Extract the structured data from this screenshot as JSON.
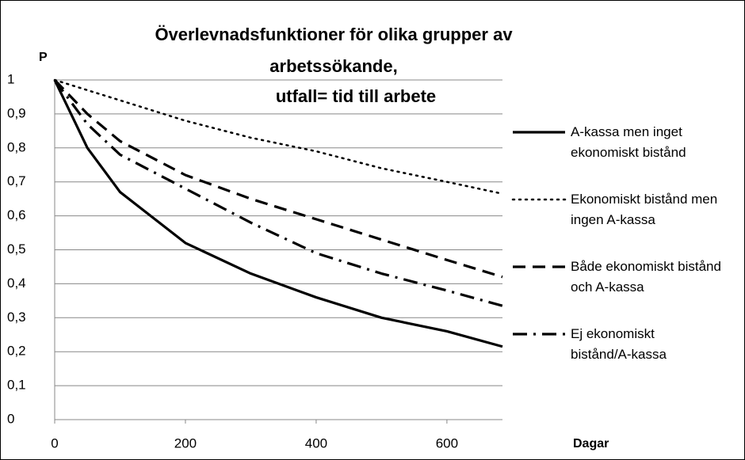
{
  "chart_data": {
    "type": "line",
    "title": [
      "Överlevnadsfunktioner för olika grupper av",
      "arbetssökande,",
      "utfall= tid till arbete"
    ],
    "y_label": "P",
    "x_label": "Dagar",
    "x": [
      0,
      50,
      100,
      200,
      300,
      400,
      500,
      600,
      685
    ],
    "series": [
      {
        "name": "A-kassa men inget ekonomiskt bistånd",
        "color": "#000000",
        "dash": "solid",
        "values": [
          1,
          0.8,
          0.67,
          0.52,
          0.43,
          0.36,
          0.3,
          0.26,
          0.215
        ]
      },
      {
        "name": "Ekonomiskt bistånd men ingen A-kassa",
        "color": "#000000",
        "dash": "dotted",
        "values": [
          1,
          0.97,
          0.94,
          0.88,
          0.83,
          0.79,
          0.74,
          0.7,
          0.665
        ]
      },
      {
        "name": "Både ekonomiskt bistånd och A-kassa",
        "color": "#000000",
        "dash": "dashed",
        "values": [
          1,
          0.9,
          0.82,
          0.72,
          0.65,
          0.59,
          0.53,
          0.47,
          0.42
        ]
      },
      {
        "name": "Ej ekonomiskt bistånd/A-kassa",
        "color": "#000000",
        "dash": "dashdot",
        "values": [
          1,
          0.87,
          0.78,
          0.68,
          0.58,
          0.49,
          0.43,
          0.38,
          0.335
        ]
      }
    ],
    "xlim": [
      0,
      685
    ],
    "xticks": [
      0,
      200,
      400,
      600
    ],
    "ylim": [
      0,
      1
    ],
    "yticks": [
      0,
      {
        "value": 0.1,
        "label": "0,1"
      },
      {
        "value": 0.2,
        "label": "0,2"
      },
      {
        "value": 0.3,
        "label": "0,3"
      },
      {
        "value": 0.4,
        "label": "0,4"
      },
      {
        "value": 0.5,
        "label": "0,5"
      },
      {
        "value": 0.6,
        "label": "0,6"
      },
      {
        "value": 0.7,
        "label": "0,7"
      },
      {
        "value": 0.8,
        "label": "0,8"
      },
      {
        "value": 0.9,
        "label": "0,9"
      },
      1
    ],
    "grid": true,
    "legend": "right"
  }
}
